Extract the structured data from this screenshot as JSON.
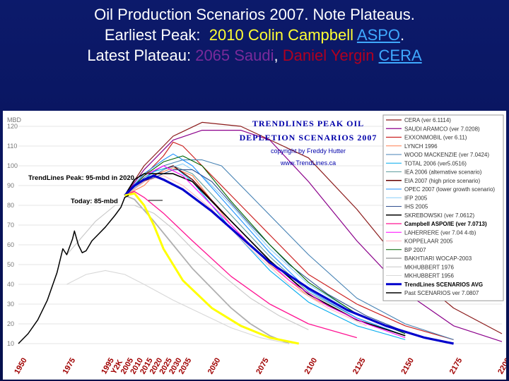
{
  "slide": {
    "title_line1": "Oil Production Scenarios 2007.  Note Plateaus.",
    "title_line2_prefix": "Earliest Peak:  ",
    "title_line2_highlight": "2010 Colin Campbell ",
    "title_line2_link": "ASPO",
    "title_line2_suffix": ".",
    "title_line3_prefix": "Latest Plateau: ",
    "title_line3_purple": "2065 Saudi",
    "title_line3_sep": ", ",
    "title_line3_maroon": "Daniel Yergin ",
    "title_line3_link": "CERA",
    "colors": {
      "background": "#0a1766",
      "title": "#ffffff",
      "highlight": "#ffff33",
      "link": "#3fa9ff"
    }
  },
  "chart_data": {
    "type": "line",
    "title": "TRENDLINES PEAK OIL DEPLETION SCENARIOS 2007",
    "title_line1": "TRENDLINES PEAK OIL",
    "title_line2": "DEPLETION SCENARIOS 2007",
    "copyright": "copyright by Freddy Hutter",
    "website": "www.TrendLines.ca",
    "ylabel": "MBD",
    "ylim": [
      10,
      125
    ],
    "xlim": [
      1950,
      2200
    ],
    "yticks": [
      10,
      20,
      30,
      40,
      50,
      60,
      70,
      80,
      90,
      100,
      110,
      120
    ],
    "xticks": [
      {
        "x": 1950,
        "label": "1950"
      },
      {
        "x": 1975,
        "label": "1975"
      },
      {
        "x": 1995,
        "label": "1995"
      },
      {
        "x": 2000,
        "label": "Y2K"
      },
      {
        "x": 2005,
        "label": "2005"
      },
      {
        "x": 2010,
        "label": "2010"
      },
      {
        "x": 2015,
        "label": "2015"
      },
      {
        "x": 2020,
        "label": "2020"
      },
      {
        "x": 2025,
        "label": "2025"
      },
      {
        "x": 2030,
        "label": "2030"
      },
      {
        "x": 2035,
        "label": "2035"
      },
      {
        "x": 2050,
        "label": "2050"
      },
      {
        "x": 2075,
        "label": "2075"
      },
      {
        "x": 2100,
        "label": "2100"
      },
      {
        "x": 2125,
        "label": "2125"
      },
      {
        "x": 2150,
        "label": "2150"
      },
      {
        "x": 2175,
        "label": "2175"
      },
      {
        "x": 2200,
        "label": "2200"
      }
    ],
    "annotations": [
      {
        "text": "TrendLines Peak: 95-mbd in 2020",
        "x": 2020,
        "y": 95
      },
      {
        "text": "Today: 85-mbd",
        "x": 2007,
        "y": 85
      }
    ],
    "legend_position": "right",
    "series": [
      {
        "name": "CERA (ver 6.1114)",
        "color": "#8b1a1a",
        "width": 1.2,
        "points": [
          [
            2005,
            85
          ],
          [
            2015,
            100
          ],
          [
            2030,
            115
          ],
          [
            2045,
            122
          ],
          [
            2065,
            120
          ],
          [
            2100,
            104
          ],
          [
            2125,
            78
          ],
          [
            2150,
            48
          ],
          [
            2175,
            28
          ],
          [
            2200,
            15
          ]
        ]
      },
      {
        "name": "SAUDI ARAMCO (ver 7.0208)",
        "color": "#8b008b",
        "width": 1.2,
        "points": [
          [
            2005,
            85
          ],
          [
            2015,
            98
          ],
          [
            2030,
            113
          ],
          [
            2045,
            118
          ],
          [
            2065,
            118
          ],
          [
            2080,
            113
          ],
          [
            2100,
            92
          ],
          [
            2125,
            62
          ],
          [
            2150,
            36
          ],
          [
            2175,
            19
          ],
          [
            2200,
            11
          ]
        ]
      },
      {
        "name": "EXXONMOBIL (ver 6.11)",
        "color": "#cc2222",
        "width": 1.2,
        "points": [
          [
            2005,
            85
          ],
          [
            2015,
            95
          ],
          [
            2025,
            105
          ],
          [
            2030,
            112
          ],
          [
            2035,
            110
          ],
          [
            2045,
            100
          ],
          [
            2065,
            80
          ],
          [
            2100,
            45
          ],
          [
            2125,
            30
          ],
          [
            2150,
            19
          ],
          [
            2175,
            12
          ]
        ]
      },
      {
        "name": "LYNCH 1996",
        "color": "#ff7f50",
        "width": 1.1,
        "points": [
          [
            2005,
            85
          ],
          [
            2015,
            90
          ],
          [
            2020,
            95
          ],
          [
            2030,
            99
          ],
          [
            2040,
            95
          ],
          [
            2060,
            70
          ],
          [
            2080,
            50
          ],
          [
            2100,
            34
          ],
          [
            2125,
            22
          ],
          [
            2150,
            14
          ]
        ]
      },
      {
        "name": "WOOD MACKENZIE (ver 7.0424)",
        "color": "#4682b4",
        "width": 1.1,
        "points": [
          [
            2005,
            85
          ],
          [
            2015,
            94
          ],
          [
            2025,
            100
          ],
          [
            2035,
            103
          ],
          [
            2045,
            103
          ],
          [
            2055,
            100
          ],
          [
            2075,
            80
          ],
          [
            2100,
            55
          ],
          [
            2125,
            33
          ],
          [
            2150,
            20
          ],
          [
            2175,
            12
          ]
        ]
      },
      {
        "name": "TOTAL 2006 (ver5.0516)",
        "color": "#00aaee",
        "width": 1.1,
        "points": [
          [
            2005,
            85
          ],
          [
            2015,
            93
          ],
          [
            2020,
            97
          ],
          [
            2030,
            100
          ],
          [
            2040,
            92
          ],
          [
            2060,
            68
          ],
          [
            2080,
            47
          ],
          [
            2100,
            31
          ],
          [
            2125,
            19
          ],
          [
            2150,
            12
          ]
        ]
      },
      {
        "name": "IEA 2006 (alternative scenario)",
        "color": "#5f9ea0",
        "width": 1.1,
        "points": [
          [
            2005,
            85
          ],
          [
            2015,
            92
          ],
          [
            2025,
            98
          ],
          [
            2030,
            100
          ],
          [
            2040,
            96
          ],
          [
            2060,
            75
          ],
          [
            2080,
            54
          ],
          [
            2100,
            36
          ],
          [
            2125,
            23
          ],
          [
            2150,
            14
          ]
        ]
      },
      {
        "name": "EIA 2007 (high price scenario)",
        "color": "#660000",
        "width": 1.4,
        "points": [
          [
            2005,
            85
          ],
          [
            2015,
            92
          ],
          [
            2025,
            98
          ],
          [
            2030,
            100
          ],
          [
            2040,
            93
          ],
          [
            2060,
            72
          ],
          [
            2080,
            52
          ],
          [
            2100,
            35
          ],
          [
            2125,
            22
          ],
          [
            2150,
            14
          ]
        ]
      },
      {
        "name": "OPEC 2007 (lower growth scenario)",
        "color": "#1e90ff",
        "width": 1.1,
        "points": [
          [
            2005,
            85
          ],
          [
            2015,
            96
          ],
          [
            2025,
            103
          ],
          [
            2030,
            106
          ],
          [
            2040,
            100
          ],
          [
            2060,
            78
          ],
          [
            2080,
            56
          ],
          [
            2100,
            37
          ],
          [
            2125,
            23
          ],
          [
            2150,
            14
          ]
        ]
      },
      {
        "name": "IFP 2005",
        "color": "#87cefa",
        "width": 1.1,
        "points": [
          [
            2005,
            85
          ],
          [
            2015,
            93
          ],
          [
            2025,
            98
          ],
          [
            2035,
            101
          ],
          [
            2045,
            95
          ],
          [
            2060,
            80
          ],
          [
            2080,
            58
          ],
          [
            2100,
            40
          ],
          [
            2125,
            25
          ],
          [
            2150,
            15
          ]
        ]
      },
      {
        "name": "IHS 2005",
        "color": "#2f4f8f",
        "width": 1.1,
        "points": [
          [
            2005,
            85
          ],
          [
            2015,
            92
          ],
          [
            2030,
            98
          ],
          [
            2040,
            98
          ],
          [
            2050,
            92
          ],
          [
            2070,
            70
          ],
          [
            2090,
            50
          ],
          [
            2110,
            35
          ],
          [
            2130,
            24
          ],
          [
            2150,
            16
          ]
        ]
      },
      {
        "name": "SKREBOWSKI (ver 7.0612)",
        "color": "#000000",
        "width": 1.6,
        "points": [
          [
            2005,
            85
          ],
          [
            2010,
            93
          ],
          [
            2015,
            96
          ],
          [
            2030,
            96
          ],
          [
            2040,
            92
          ],
          [
            2060,
            72
          ],
          [
            2080,
            52
          ],
          [
            2100,
            35
          ],
          [
            2125,
            22
          ],
          [
            2150,
            14
          ]
        ]
      },
      {
        "name": "Campbell ASPO/IE (ver 7.0713)",
        "color": "#ff1493",
        "width": 1.3,
        "points": [
          [
            2005,
            85
          ],
          [
            2010,
            87
          ],
          [
            2015,
            84
          ],
          [
            2025,
            76
          ],
          [
            2040,
            62
          ],
          [
            2060,
            44
          ],
          [
            2080,
            30
          ],
          [
            2100,
            20
          ],
          [
            2125,
            13
          ]
        ]
      },
      {
        "name": "LAHERRERE (ver 7.04 4-tb)",
        "color": "#ff00ff",
        "width": 1.1,
        "points": [
          [
            2005,
            85
          ],
          [
            2015,
            95
          ],
          [
            2025,
            100
          ],
          [
            2035,
            95
          ],
          [
            2050,
            80
          ],
          [
            2070,
            60
          ],
          [
            2090,
            42
          ],
          [
            2110,
            29
          ],
          [
            2130,
            20
          ],
          [
            2150,
            13
          ]
        ]
      },
      {
        "name": "KOPPELAAR 2005",
        "color": "#ffb6c1",
        "width": 1.1,
        "points": [
          [
            2005,
            85
          ],
          [
            2015,
            92
          ],
          [
            2025,
            95
          ],
          [
            2035,
            90
          ],
          [
            2050,
            78
          ],
          [
            2070,
            58
          ],
          [
            2090,
            40
          ],
          [
            2110,
            28
          ],
          [
            2130,
            19
          ]
        ]
      },
      {
        "name": "BP 2007",
        "color": "#006400",
        "width": 1.1,
        "points": [
          [
            2005,
            85
          ],
          [
            2015,
            95
          ],
          [
            2025,
            102
          ],
          [
            2035,
            105
          ],
          [
            2045,
            100
          ],
          [
            2060,
            82
          ],
          [
            2080,
            60
          ],
          [
            2100,
            41
          ],
          [
            2125,
            25
          ],
          [
            2150,
            15
          ]
        ]
      },
      {
        "name": "BAKHTIARI WOCAP-2003",
        "color": "#b0b0b0",
        "width": 1.8,
        "points": [
          [
            2005,
            85
          ],
          [
            2010,
            83
          ],
          [
            2020,
            72
          ],
          [
            2030,
            60
          ],
          [
            2040,
            48
          ],
          [
            2050,
            38
          ],
          [
            2060,
            28
          ],
          [
            2070,
            20
          ],
          [
            2080,
            14
          ],
          [
            2090,
            10
          ]
        ]
      },
      {
        "name": "MKHUBBERT 1976",
        "color": "#c8c8c8",
        "width": 1.1,
        "points": [
          [
            1975,
            55
          ],
          [
            1990,
            72
          ],
          [
            2000,
            80
          ],
          [
            2010,
            80
          ],
          [
            2020,
            76
          ],
          [
            2030,
            68
          ],
          [
            2040,
            58
          ],
          [
            2055,
            45
          ],
          [
            2070,
            33
          ],
          [
            2085,
            24
          ],
          [
            2100,
            17
          ]
        ]
      },
      {
        "name": "MKHUBBERT 1956",
        "color": "#d8d8d8",
        "width": 1.1,
        "points": [
          [
            1975,
            40
          ],
          [
            1985,
            45
          ],
          [
            1995,
            47
          ],
          [
            2005,
            45
          ],
          [
            2015,
            40
          ],
          [
            2030,
            32
          ],
          [
            2045,
            25
          ],
          [
            2060,
            18
          ],
          [
            2075,
            13
          ],
          [
            2090,
            10
          ]
        ]
      },
      {
        "name": "TrendLines SCENARIOS AVG",
        "color": "#0000cc",
        "width": 3.2,
        "points": [
          [
            2005,
            85
          ],
          [
            2010,
            90
          ],
          [
            2015,
            93
          ],
          [
            2020,
            95
          ],
          [
            2025,
            93
          ],
          [
            2035,
            88
          ],
          [
            2050,
            77
          ],
          [
            2065,
            64
          ],
          [
            2080,
            51
          ],
          [
            2100,
            38
          ],
          [
            2120,
            27
          ],
          [
            2140,
            19
          ],
          [
            2160,
            13
          ],
          [
            2175,
            10
          ]
        ]
      },
      {
        "name": "Yellow scenario (unlabeled)",
        "color": "#ffff00",
        "width": 3,
        "points": [
          [
            2005,
            85
          ],
          [
            2010,
            86
          ],
          [
            2015,
            80
          ],
          [
            2020,
            70
          ],
          [
            2025,
            58
          ],
          [
            2035,
            42
          ],
          [
            2050,
            28
          ],
          [
            2065,
            19
          ],
          [
            2080,
            13
          ],
          [
            2095,
            10
          ]
        ]
      },
      {
        "name": "Past    SCENARIOS ver 7.0807",
        "color": "#000000",
        "width": 1.5,
        "points": [
          [
            1950,
            10
          ],
          [
            1955,
            15
          ],
          [
            1960,
            22
          ],
          [
            1965,
            32
          ],
          [
            1970,
            46
          ],
          [
            1973,
            58
          ],
          [
            1975,
            55
          ],
          [
            1978,
            63
          ],
          [
            1979,
            67
          ],
          [
            1981,
            60
          ],
          [
            1983,
            56
          ],
          [
            1985,
            57
          ],
          [
            1988,
            62
          ],
          [
            1991,
            65
          ],
          [
            1995,
            69
          ],
          [
            2000,
            75
          ],
          [
            2003,
            79
          ],
          [
            2005,
            84
          ],
          [
            2007,
            85
          ]
        ]
      }
    ]
  }
}
